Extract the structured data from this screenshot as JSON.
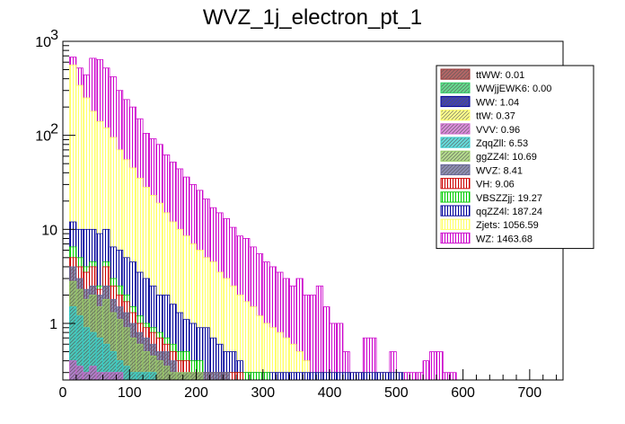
{
  "chart_data": {
    "type": "histogram",
    "title": "WVZ_1j_electron_pt_1",
    "xlabel": "",
    "ylabel": "",
    "xlim": [
      0,
      750
    ],
    "ylim": [
      0.25,
      1000
    ],
    "yscale": "log",
    "bin_width": 10,
    "bin_start": 10,
    "stacked": true,
    "x_ticks": [
      {
        "value": 0,
        "label": "0"
      },
      {
        "value": 100,
        "label": "100"
      },
      {
        "value": 200,
        "label": "200"
      },
      {
        "value": 300,
        "label": "300"
      },
      {
        "value": 400,
        "label": "400"
      },
      {
        "value": 500,
        "label": "500"
      },
      {
        "value": 600,
        "label": "600"
      },
      {
        "value": 700,
        "label": "700"
      }
    ],
    "y_ticks": [
      {
        "value": 1,
        "label": "1"
      },
      {
        "value": 10,
        "label": "10"
      },
      {
        "value": 100,
        "label": "10",
        "exp": "2"
      },
      {
        "value": 1000,
        "label": "10",
        "exp": "3"
      }
    ],
    "legend_position": "top-right",
    "series": [
      {
        "name": "WZ",
        "legend": "WZ: 1463.68",
        "color": "#cc00cc",
        "fill": "vlines",
        "values": [
          680,
          520,
          440,
          660,
          640,
          520,
          420,
          300,
          240,
          200,
          150,
          105,
          92,
          80,
          62,
          52,
          44,
          36,
          30,
          26,
          21,
          17,
          15,
          13,
          10.5,
          8.5,
          8,
          6.5,
          5.5,
          4.5,
          4,
          3.5,
          3,
          2.5,
          3,
          2,
          2,
          2.5,
          1.5,
          1,
          1,
          0.5,
          0.3,
          0.3,
          0.7,
          0.7,
          0.3,
          0.3,
          0.5,
          0.3,
          0.3,
          0.3,
          0.3,
          0.4,
          0.5,
          0.5,
          0.3,
          0.3,
          0,
          0,
          0,
          0,
          0
        ]
      },
      {
        "name": "Zjets",
        "legend": "Zjets: 1056.59",
        "color": "#ffff66",
        "fill": "vlines",
        "values": [
          560,
          340,
          250,
          180,
          140,
          120,
          95,
          70,
          55,
          45,
          35,
          28,
          23,
          19,
          15,
          12,
          10,
          8.5,
          7,
          6,
          5,
          4.5,
          3.5,
          3,
          2.5,
          2,
          1.7,
          1.5,
          1.2,
          1,
          0.9,
          0.8,
          0.7,
          0.6,
          0.5,
          0.4,
          0.3,
          0.3,
          0.3,
          0.3,
          0.3,
          0.3,
          0.3,
          0.3,
          0.3,
          0.3,
          0.3,
          0.3,
          0.3,
          0.3,
          0,
          0,
          0,
          0,
          0,
          0,
          0,
          0,
          0,
          0,
          0,
          0,
          0
        ]
      },
      {
        "name": "qqZZ4l",
        "legend": "qqZZ4l: 187.24",
        "color": "#000099",
        "fill": "vlines",
        "values": [
          12,
          10,
          10,
          10,
          9,
          10,
          6.5,
          6,
          5,
          4.5,
          3.5,
          3,
          2.5,
          2,
          2,
          1.6,
          1.3,
          1.1,
          1,
          0.9,
          0.9,
          0.7,
          0.6,
          0.5,
          0.5,
          0.4,
          0.3,
          0.3,
          0.3,
          0.3,
          0.3,
          0.3,
          0.3,
          0.3,
          0.3,
          0.3,
          0.3,
          0.3,
          0.3,
          0.3,
          0.3,
          0.3,
          0.3,
          0.3,
          0.3,
          0.3,
          0.3,
          0.3,
          0.3,
          0.3,
          0,
          0,
          0,
          0,
          0,
          0,
          0,
          0,
          0,
          0,
          0,
          0,
          0
        ]
      },
      {
        "name": "VBSZZjj",
        "legend": "VBSZZjj: 19.27",
        "color": "#00cc00",
        "fill": "vlines",
        "values": [
          6.5,
          5,
          4,
          4.5,
          2.5,
          4.5,
          3,
          2.5,
          2,
          1.5,
          1.2,
          1,
          0.9,
          0.8,
          0.7,
          0.6,
          0.5,
          0.5,
          0.4,
          0.4,
          0.3,
          0.3,
          0.3,
          0.3,
          0.3,
          0.3,
          0.3,
          0.3,
          0.3,
          0.3,
          0,
          0,
          0,
          0,
          0,
          0,
          0,
          0,
          0,
          0,
          0,
          0,
          0,
          0,
          0,
          0,
          0,
          0,
          0,
          0,
          0,
          0,
          0,
          0,
          0,
          0,
          0,
          0,
          0,
          0,
          0,
          0,
          0
        ]
      },
      {
        "name": "VH",
        "legend": "VH: 9.06",
        "color": "#cc0000",
        "fill": "vlines",
        "values": [
          5,
          4,
          3.5,
          4,
          2.3,
          4,
          2.5,
          2,
          1.7,
          1.3,
          1,
          0.9,
          0.8,
          0.7,
          0.6,
          0.5,
          0.4,
          0.4,
          0.3,
          0.3,
          0.3,
          0.3,
          0.3,
          0.3,
          0.3,
          0.3,
          0,
          0,
          0,
          0,
          0,
          0,
          0,
          0,
          0,
          0,
          0,
          0,
          0,
          0,
          0,
          0,
          0,
          0,
          0,
          0,
          0,
          0,
          0,
          0,
          0,
          0,
          0,
          0,
          0,
          0,
          0,
          0,
          0,
          0,
          0,
          0,
          0
        ]
      },
      {
        "name": "WVZ",
        "legend": "WVZ: 8.41",
        "color": "#666699",
        "fill": "hatch",
        "values": [
          4,
          3,
          2.3,
          2.5,
          2,
          2.5,
          1.8,
          1.5,
          1.3,
          1,
          0.8,
          0.7,
          0.6,
          0.5,
          0.5,
          0.4,
          0.3,
          0.3,
          0.3,
          0.3,
          0.3,
          0.3,
          0.3,
          0.3,
          0,
          0,
          0,
          0,
          0,
          0,
          0,
          0,
          0,
          0,
          0,
          0,
          0,
          0,
          0,
          0,
          0,
          0,
          0,
          0,
          0,
          0,
          0,
          0,
          0,
          0,
          0,
          0,
          0,
          0,
          0,
          0,
          0,
          0,
          0,
          0,
          0,
          0,
          0
        ]
      },
      {
        "name": "ggZZ4l",
        "legend": "ggZZ4l: 10.69",
        "color": "#99cc66",
        "fill": "hatch",
        "values": [
          2.8,
          2.3,
          1.8,
          2,
          1.5,
          1.8,
          1.3,
          1.1,
          0.9,
          0.7,
          0.6,
          0.5,
          0.45,
          0.4,
          0.35,
          0.3,
          0.3,
          0.3,
          0.3,
          0.3,
          0,
          0,
          0,
          0,
          0,
          0,
          0,
          0,
          0,
          0,
          0,
          0,
          0,
          0,
          0,
          0,
          0,
          0,
          0,
          0,
          0,
          0,
          0,
          0,
          0,
          0,
          0,
          0,
          0,
          0,
          0,
          0,
          0,
          0,
          0,
          0,
          0,
          0,
          0,
          0,
          0,
          0,
          0
        ]
      },
      {
        "name": "ZqqZll",
        "legend": "ZqqZll: 6.53",
        "color": "#33cccc",
        "fill": "hatch",
        "values": [
          1.5,
          1.2,
          0.9,
          0.8,
          0.7,
          0.6,
          0.5,
          0.4,
          0.35,
          0.3,
          0.3,
          0.3,
          0.3,
          0,
          0,
          0,
          0,
          0,
          0,
          0,
          0,
          0,
          0,
          0,
          0,
          0,
          0,
          0,
          0,
          0,
          0,
          0,
          0,
          0,
          0,
          0,
          0,
          0,
          0,
          0,
          0,
          0,
          0,
          0,
          0,
          0,
          0,
          0,
          0,
          0,
          0,
          0,
          0,
          0,
          0,
          0,
          0,
          0,
          0,
          0,
          0,
          0,
          0
        ]
      },
      {
        "name": "VVV",
        "legend": "VVV: 0.96",
        "color": "#cc66cc",
        "fill": "hatch",
        "values": [
          0.4,
          0.35,
          0.3,
          0.35,
          0.3,
          0.3,
          0.3,
          0.3,
          0,
          0,
          0,
          0,
          0,
          0,
          0,
          0,
          0,
          0,
          0,
          0,
          0,
          0,
          0,
          0,
          0,
          0,
          0,
          0,
          0,
          0,
          0,
          0,
          0,
          0,
          0,
          0,
          0,
          0,
          0,
          0,
          0,
          0,
          0,
          0,
          0,
          0,
          0,
          0,
          0,
          0,
          0,
          0,
          0,
          0,
          0,
          0,
          0,
          0,
          0,
          0,
          0,
          0,
          0
        ]
      },
      {
        "name": "ttW",
        "legend": "ttW: 0.37",
        "color": "#ffff66",
        "fill": "hatch",
        "values": [
          0,
          0,
          0,
          0,
          0,
          0,
          0,
          0,
          0,
          0,
          0,
          0,
          0,
          0,
          0,
          0,
          0,
          0,
          0,
          0,
          0,
          0,
          0,
          0,
          0,
          0,
          0,
          0,
          0,
          0,
          0,
          0,
          0,
          0,
          0,
          0,
          0,
          0,
          0,
          0,
          0,
          0,
          0,
          0,
          0,
          0,
          0,
          0,
          0,
          0,
          0,
          0,
          0,
          0,
          0,
          0,
          0,
          0,
          0,
          0,
          0,
          0,
          0
        ]
      },
      {
        "name": "WW",
        "legend": "WW: 1.04",
        "color": "#000099",
        "fill": "hatch",
        "values": [
          0,
          0,
          0,
          0,
          0,
          0,
          0,
          0,
          0,
          0,
          0,
          0,
          0,
          0,
          0,
          0,
          0,
          0,
          0,
          0,
          0,
          0,
          0,
          0,
          0,
          0,
          0,
          0,
          0,
          0,
          0,
          0,
          0,
          0,
          0,
          0,
          0,
          0,
          0,
          0,
          0,
          0,
          0,
          0,
          0,
          0,
          0,
          0,
          0,
          0,
          0,
          0,
          0,
          0,
          0,
          0,
          0,
          0,
          0,
          0,
          0,
          0,
          0
        ]
      },
      {
        "name": "WWjjEWK6",
        "legend": "WWjjEWK6: 0.00",
        "color": "#33cc66",
        "fill": "hatch",
        "values": [
          0,
          0,
          0,
          0,
          0,
          0,
          0,
          0,
          0,
          0,
          0,
          0,
          0,
          0,
          0,
          0,
          0,
          0,
          0,
          0,
          0,
          0,
          0,
          0,
          0,
          0,
          0,
          0,
          0,
          0,
          0,
          0,
          0,
          0,
          0,
          0,
          0,
          0,
          0,
          0,
          0,
          0,
          0,
          0,
          0,
          0,
          0,
          0,
          0,
          0,
          0,
          0,
          0,
          0,
          0,
          0,
          0,
          0,
          0,
          0,
          0,
          0,
          0
        ]
      },
      {
        "name": "ttWW",
        "legend": "ttWW: 0.01",
        "color": "#993333",
        "fill": "hatch",
        "values": [
          0,
          0,
          0,
          0,
          0,
          0,
          0,
          0,
          0,
          0,
          0,
          0,
          0,
          0,
          0,
          0,
          0,
          0,
          0,
          0,
          0,
          0,
          0,
          0,
          0,
          0,
          0,
          0,
          0,
          0,
          0,
          0,
          0,
          0,
          0,
          0,
          0,
          0,
          0,
          0,
          0,
          0,
          0,
          0,
          0,
          0,
          0,
          0,
          0,
          0,
          0,
          0,
          0,
          0,
          0,
          0,
          0,
          0,
          0,
          0,
          0,
          0,
          0
        ]
      }
    ],
    "legend_order": [
      "ttWW",
      "WWjjEWK6",
      "WW",
      "ttW",
      "VVV",
      "ZqqZll",
      "ggZZ4l",
      "WVZ",
      "VH",
      "VBSZZjj",
      "qqZZ4l",
      "Zjets",
      "WZ"
    ]
  }
}
